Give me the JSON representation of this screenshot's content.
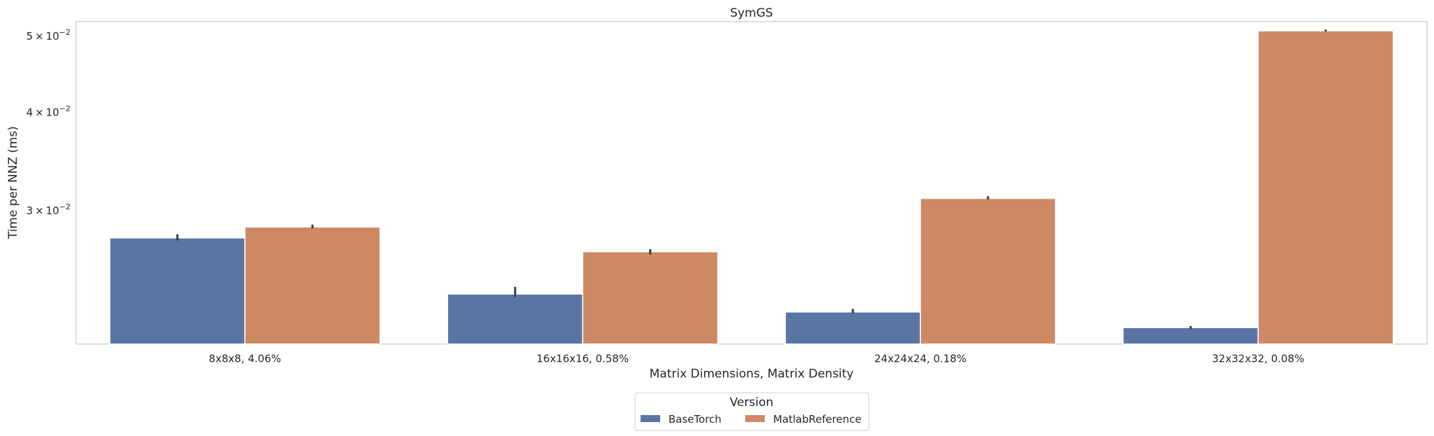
{
  "chart_data": {
    "type": "bar",
    "title": "SymGS",
    "xlabel": "Matrix Dimensions, Matrix Density",
    "ylabel": "Time per NNZ (ms)",
    "yscale": "log",
    "ylim": [
      0.0203,
      0.0522
    ],
    "grid": false,
    "categories": [
      "8x8x8, 4.06%",
      "16x16x16, 0.58%",
      "24x24x24, 0.18%",
      "32x32x32, 0.08%"
    ],
    "yticks": [
      {
        "value": 0.03,
        "base": "3 × 10",
        "exp": "−2"
      },
      {
        "value": 0.04,
        "base": "4 × 10",
        "exp": "−2"
      },
      {
        "value": 0.05,
        "base": "5 × 10",
        "exp": "−2"
      }
    ],
    "legend": {
      "title": "Version",
      "position": "bottom-center"
    },
    "series": [
      {
        "name": "BaseTorch",
        "color": "#5975a4",
        "values": [
          0.0277,
          0.0235,
          0.0223,
          0.0213
        ],
        "err_low": [
          0.0275,
          0.0233,
          0.0222,
          0.0212
        ],
        "err_high": [
          0.028,
          0.024,
          0.0225,
          0.0214
        ]
      },
      {
        "name": "MatlabReference",
        "color": "#cc8963",
        "values": [
          0.0286,
          0.0266,
          0.0311,
          0.0508
        ],
        "err_low": [
          0.0285,
          0.0264,
          0.031,
          0.0507
        ],
        "err_high": [
          0.0288,
          0.0268,
          0.0313,
          0.051
        ]
      }
    ]
  }
}
